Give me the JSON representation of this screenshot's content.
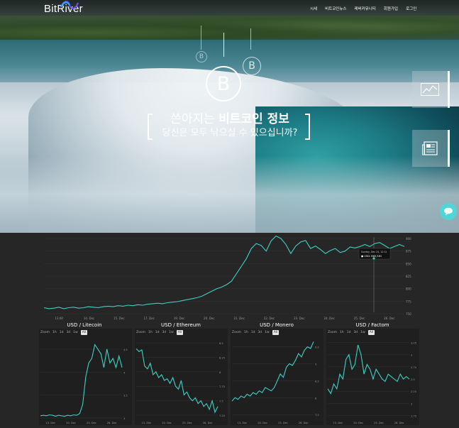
{
  "header": {
    "logo_text": "BitRiver",
    "nav": [
      "시세",
      "비트코인뉴스",
      "레버커뮤니티",
      "회원가입",
      "로그인"
    ]
  },
  "hero": {
    "headline_light": "쓴아지는 ",
    "headline_bold": "비트코인 정보",
    "subline": "당신은 모두 낚으실 수 있으십니까?",
    "btc_symbol": "B"
  },
  "colors": {
    "line": "#3ed0c4",
    "accent": "#4fd6d6",
    "background": "#262626"
  },
  "icons": [
    "chart-icon",
    "news-icon",
    "chat-icon",
    "bitcoin-icon"
  ],
  "tooltip": {
    "date": "Sunday, Dec 24, 12:12",
    "label": "USD",
    "value": "860,581"
  },
  "chart_data": [
    {
      "type": "line",
      "title": "",
      "x_ticks": [
        "13:00",
        "14. Dec",
        "15. Dec",
        "17. Dec",
        "19. Dec",
        "20. Dec",
        "21. Dec",
        "22. Dec",
        "23. Dec",
        "24. Dec",
        "25. Dec",
        "26. Dec"
      ],
      "y_ticks": [
        "900",
        "875",
        "850",
        "825",
        "800",
        "775",
        "750"
      ],
      "ylim": [
        750,
        900
      ],
      "values": [
        762,
        760,
        761,
        763,
        760,
        762,
        763,
        761,
        762,
        764,
        763,
        762,
        764,
        765,
        764,
        766,
        765,
        767,
        766,
        768,
        767,
        769,
        770,
        771,
        770,
        772,
        773,
        774,
        776,
        778,
        780,
        782,
        785,
        790,
        795,
        800,
        803,
        808,
        815,
        830,
        845,
        860,
        880,
        890,
        886,
        875,
        895,
        905,
        900,
        888,
        870,
        885,
        893,
        896,
        880,
        885,
        878,
        870,
        876,
        880,
        872,
        875,
        883,
        881,
        884,
        888,
        884,
        890,
        892,
        886,
        880,
        884,
        888,
        884
      ]
    },
    {
      "type": "line",
      "title": "USD / Litecoin",
      "x_ticks": [
        "13. Dec",
        "20. Dec",
        "23. Dec",
        "26. Dec"
      ],
      "y_ticks": [
        "4.5",
        "4",
        "3.5",
        "3"
      ],
      "ylim": [
        3,
        4.7
      ],
      "values": [
        3.05,
        3.06,
        3.05,
        3.07,
        3.06,
        3.04,
        3.06,
        3.05,
        3.04,
        3.06,
        3.05,
        3.07,
        3.06,
        3.1,
        3.3,
        3.9,
        4.2,
        4.3,
        4.6,
        4.5,
        4.4,
        4.1,
        4.5,
        4.2,
        4.3,
        4.1,
        4.35,
        4.1
      ]
    },
    {
      "type": "line",
      "title": "USD / Ethereum",
      "x_ticks": [
        "13. Dec",
        "20. Dec",
        "23. Dec",
        "26. Dec"
      ],
      "y_ticks": [
        "8.5",
        "8.25",
        "8",
        "7.75",
        "7.5",
        "7.25"
      ],
      "ylim": [
        7.2,
        8.55
      ],
      "values": [
        8.4,
        8.35,
        8.38,
        8.1,
        8.05,
        8.15,
        7.95,
        8.0,
        7.9,
        7.95,
        7.85,
        7.88,
        7.8,
        7.9,
        7.75,
        7.7,
        7.85,
        7.6,
        7.65,
        7.55,
        7.5,
        7.55,
        7.45,
        7.5,
        7.4,
        7.45,
        7.35,
        7.5,
        7.3,
        7.4
      ]
    },
    {
      "type": "line",
      "title": "USD / Monero",
      "x_ticks": [
        "13. Dec",
        "20. Dec",
        "23. Dec",
        "26. Dec"
      ],
      "y_ticks": [
        "9.5",
        "9",
        "8.5",
        "8",
        "7.5"
      ],
      "ylim": [
        7.4,
        9.7
      ],
      "values": [
        7.9,
        8.0,
        7.95,
        8.05,
        8.0,
        8.1,
        8.05,
        8.15,
        8.1,
        8.2,
        8.15,
        8.3,
        8.25,
        8.2,
        8.3,
        8.5,
        8.7,
        8.6,
        8.9,
        9.0,
        8.95,
        9.1,
        9.3,
        9.2,
        9.4,
        9.5,
        9.45,
        9.65
      ]
    },
    {
      "type": "line",
      "title": "USD / Factom",
      "x_ticks": [
        "13. Dec",
        "20. Dec",
        "23. Dec",
        "26. Dec"
      ],
      "y_ticks": [
        "3.25",
        "3",
        "2.75",
        "2.5",
        "2.25",
        "2",
        "1.75"
      ],
      "ylim": [
        1.7,
        3.3
      ],
      "values": [
        2.3,
        2.2,
        2.4,
        2.3,
        2.6,
        2.5,
        2.9,
        3.0,
        2.7,
        2.8,
        3.2,
        3.0,
        2.6,
        2.8,
        2.7,
        2.5,
        2.7,
        2.6,
        2.5,
        2.45,
        2.6,
        2.55,
        2.5,
        2.45,
        2.6,
        2.5,
        2.55,
        2.5
      ]
    }
  ],
  "zoom": {
    "label": "Zoom",
    "options": [
      "1h",
      "1d",
      "3d",
      "1w",
      "All"
    ]
  }
}
